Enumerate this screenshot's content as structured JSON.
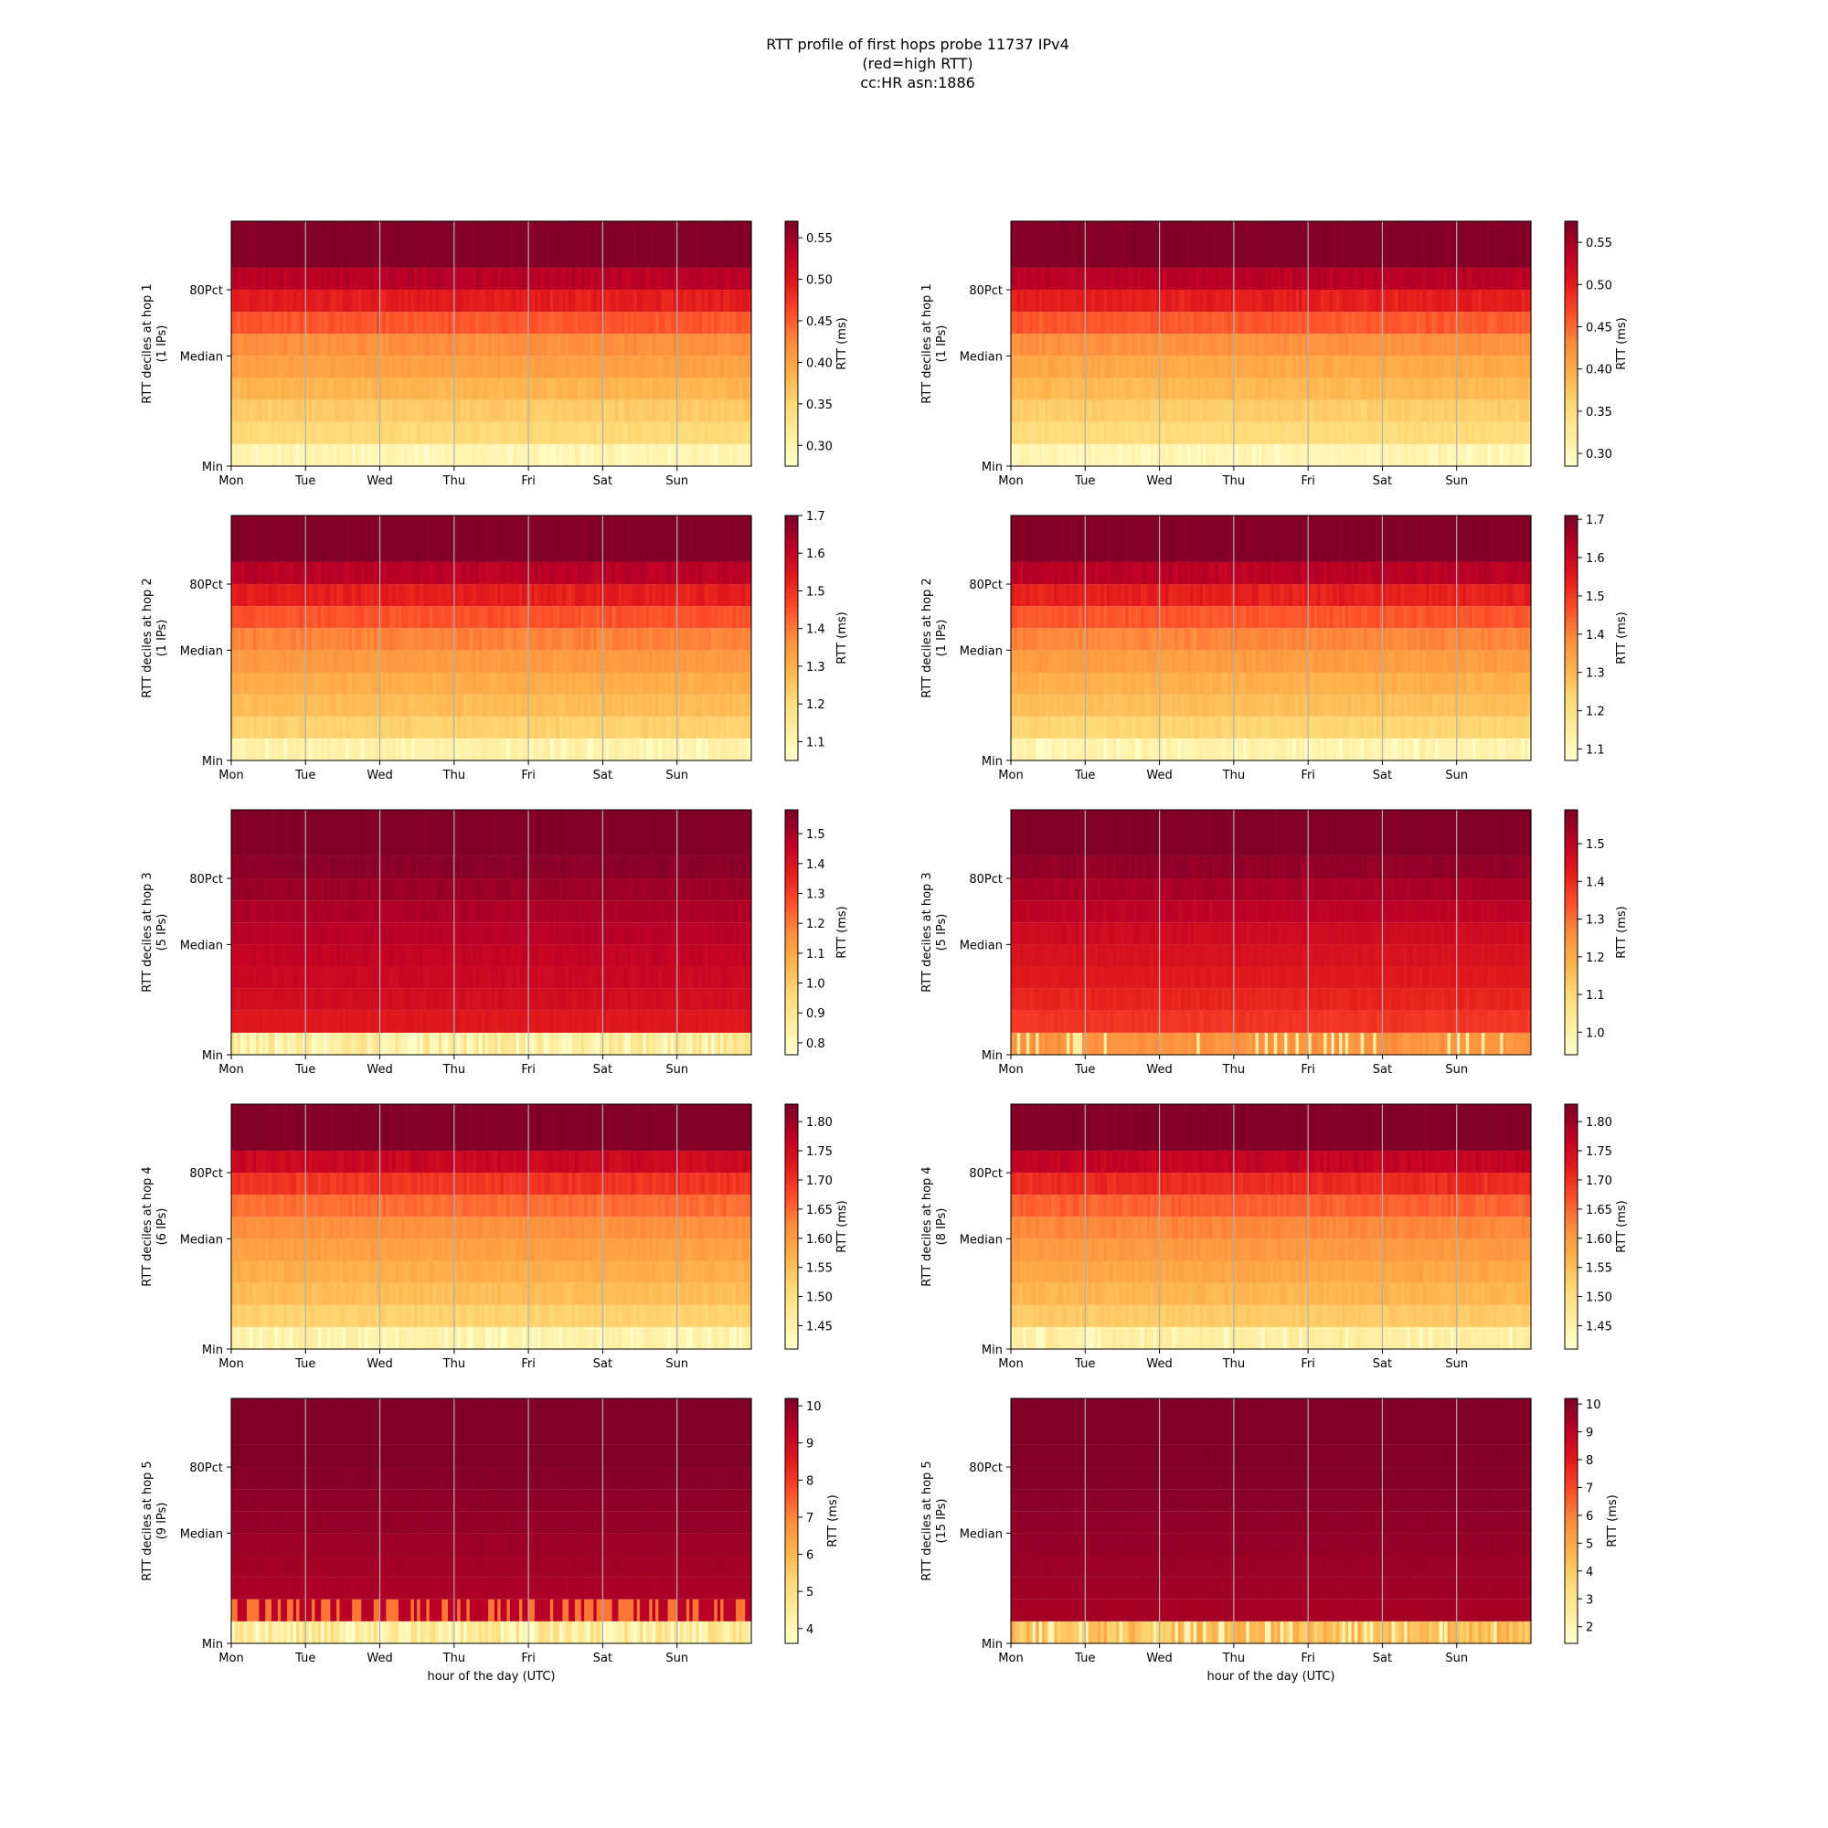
{
  "figure": {
    "title_lines": [
      "RTT profile of first hops probe 11737 IPv4",
      "(red=high RTT)",
      "cc:HR asn:1886"
    ]
  },
  "colors": {
    "colormap": [
      "#ffffcc",
      "#ffeda0",
      "#fed976",
      "#feb24c",
      "#fd8d3c",
      "#fc4e2a",
      "#e31a1c",
      "#bd0026",
      "#800026"
    ],
    "gridline": "#b0b0b0"
  },
  "chart_data": [
    {
      "type": "heatmap",
      "hop": 1,
      "column": "left",
      "ylabel": "RTT deciles at hop 1",
      "ylabel2": "(1 IPs)",
      "xlabel": "",
      "x_ticks": [
        "Mon",
        "Tue",
        "Wed",
        "Thu",
        "Fri",
        "Sat",
        "Sun"
      ],
      "y_ticks": [
        "Min",
        "Median",
        "80Pct"
      ],
      "colorbar": {
        "label": "RTT (ms)",
        "range": [
          0.275,
          0.57
        ],
        "ticks": [
          "0.30",
          "0.35",
          "0.40",
          "0.45",
          "0.50",
          "0.55"
        ]
      },
      "deciles_ms": [
        0.29,
        0.345,
        0.36,
        0.38,
        0.4,
        0.415,
        0.45,
        0.49,
        0.53,
        0.57,
        0.57
      ],
      "noise": 0.04,
      "spikes": []
    },
    {
      "type": "heatmap",
      "hop": 1,
      "column": "right",
      "ylabel": "RTT deciles at hop 1",
      "ylabel2": "(1 IPs)",
      "xlabel": "",
      "x_ticks": [
        "Mon",
        "Tue",
        "Wed",
        "Thu",
        "Fri",
        "Sat",
        "Sun"
      ],
      "y_ticks": [
        "Min",
        "Median",
        "80Pct"
      ],
      "colorbar": {
        "label": "RTT (ms)",
        "range": [
          0.285,
          0.575
        ],
        "ticks": [
          "0.30",
          "0.35",
          "0.40",
          "0.45",
          "0.50",
          "0.55"
        ]
      },
      "deciles_ms": [
        0.3,
        0.35,
        0.365,
        0.385,
        0.4,
        0.42,
        0.455,
        0.495,
        0.535,
        0.575,
        0.575
      ],
      "noise": 0.04,
      "spikes": []
    },
    {
      "type": "heatmap",
      "hop": 2,
      "column": "left",
      "ylabel": "RTT deciles at hop 2",
      "ylabel2": "(1 IPs)",
      "xlabel": "",
      "x_ticks": [
        "Mon",
        "Tue",
        "Wed",
        "Thu",
        "Fri",
        "Sat",
        "Sun"
      ],
      "y_ticks": [
        "Min",
        "Median",
        "80Pct"
      ],
      "colorbar": {
        "label": "RTT (ms)",
        "range": [
          1.05,
          1.7
        ],
        "ticks": [
          "1.1",
          "1.2",
          "1.3",
          "1.4",
          "1.5",
          "1.6",
          "1.7"
        ]
      },
      "deciles_ms": [
        1.1,
        1.22,
        1.27,
        1.3,
        1.34,
        1.38,
        1.44,
        1.52,
        1.61,
        1.7,
        1.7
      ],
      "noise": 0.04,
      "spikes": []
    },
    {
      "type": "heatmap",
      "hop": 2,
      "column": "right",
      "ylabel": "RTT deciles at hop 2",
      "ylabel2": "(1 IPs)",
      "xlabel": "",
      "x_ticks": [
        "Mon",
        "Tue",
        "Wed",
        "Thu",
        "Fri",
        "Sat",
        "Sun"
      ],
      "y_ticks": [
        "Min",
        "Median",
        "80Pct"
      ],
      "colorbar": {
        "label": "RTT (ms)",
        "range": [
          1.07,
          1.71
        ],
        "ticks": [
          "1.1",
          "1.2",
          "1.3",
          "1.4",
          "1.5",
          "1.6",
          "1.7"
        ]
      },
      "deciles_ms": [
        1.11,
        1.23,
        1.28,
        1.31,
        1.35,
        1.39,
        1.45,
        1.53,
        1.62,
        1.71,
        1.71
      ],
      "noise": 0.04,
      "spikes": []
    },
    {
      "type": "heatmap",
      "hop": 3,
      "column": "left",
      "ylabel": "RTT deciles at hop 3",
      "ylabel2": "(5 IPs)",
      "xlabel": "",
      "x_ticks": [
        "Mon",
        "Tue",
        "Wed",
        "Thu",
        "Fri",
        "Sat",
        "Sun"
      ],
      "y_ticks": [
        "Min",
        "Median",
        "80Pct"
      ],
      "colorbar": {
        "label": "RTT (ms)",
        "range": [
          0.76,
          1.58
        ],
        "ticks": [
          "0.8",
          "0.9",
          "1.0",
          "1.1",
          "1.2",
          "1.3",
          "1.4",
          "1.5"
        ]
      },
      "deciles_ms": [
        0.79,
        1.38,
        1.42,
        1.44,
        1.46,
        1.48,
        1.5,
        1.53,
        1.56,
        1.58,
        1.58
      ],
      "noise": 0.03,
      "spikes": []
    },
    {
      "type": "heatmap",
      "hop": 3,
      "column": "right",
      "ylabel": "RTT deciles at hop 3",
      "ylabel2": "(5 IPs)",
      "xlabel": "",
      "x_ticks": [
        "Mon",
        "Tue",
        "Wed",
        "Thu",
        "Fri",
        "Sat",
        "Sun"
      ],
      "y_ticks": [
        "Min",
        "Median",
        "80Pct"
      ],
      "colorbar": {
        "label": "RTT (ms)",
        "range": [
          0.94,
          1.59
        ],
        "ticks": [
          "1.0",
          "1.1",
          "1.2",
          "1.3",
          "1.4",
          "1.5"
        ]
      },
      "deciles_ms": [
        1.23,
        1.38,
        1.41,
        1.43,
        1.45,
        1.47,
        1.5,
        1.53,
        1.56,
        1.59,
        1.59
      ],
      "noise": 0.03,
      "spikes": [
        {
          "decile": 0,
          "x_frac": 0.526,
          "value_ms": 0.96
        },
        {
          "decile": 0,
          "x_frac": 0.616,
          "value_ms": 0.96
        }
      ]
    },
    {
      "type": "heatmap",
      "hop": 4,
      "column": "left",
      "ylabel": "RTT deciles at hop 4",
      "ylabel2": "(6 IPs)",
      "xlabel": "",
      "x_ticks": [
        "Mon",
        "Tue",
        "Wed",
        "Thu",
        "Fri",
        "Sat",
        "Sun"
      ],
      "y_ticks": [
        "Min",
        "Median",
        "80Pct"
      ],
      "colorbar": {
        "label": "RTT (ms)",
        "range": [
          1.41,
          1.83
        ],
        "ticks": [
          "1.45",
          "1.50",
          "1.55",
          "1.60",
          "1.65",
          "1.70",
          "1.75",
          "1.80"
        ]
      },
      "deciles_ms": [
        1.44,
        1.52,
        1.55,
        1.57,
        1.59,
        1.61,
        1.64,
        1.69,
        1.75,
        1.83,
        1.83
      ],
      "noise": 0.04,
      "spikes": []
    },
    {
      "type": "heatmap",
      "hop": 4,
      "column": "right",
      "ylabel": "RTT deciles at hop 4",
      "ylabel2": "(8 IPs)",
      "xlabel": "",
      "x_ticks": [
        "Mon",
        "Tue",
        "Wed",
        "Thu",
        "Fri",
        "Sat",
        "Sun"
      ],
      "y_ticks": [
        "Min",
        "Median",
        "80Pct"
      ],
      "colorbar": {
        "label": "RTT (ms)",
        "range": [
          1.41,
          1.83
        ],
        "ticks": [
          "1.45",
          "1.50",
          "1.55",
          "1.60",
          "1.65",
          "1.70",
          "1.75",
          "1.80"
        ]
      },
      "deciles_ms": [
        1.45,
        1.53,
        1.56,
        1.58,
        1.6,
        1.62,
        1.65,
        1.7,
        1.76,
        1.83,
        1.83
      ],
      "noise": 0.04,
      "spikes": []
    },
    {
      "type": "heatmap",
      "hop": 5,
      "column": "left",
      "ylabel": "RTT deciles at hop 5",
      "ylabel2": "(9 IPs)",
      "xlabel": "hour of the day (UTC)",
      "x_ticks": [
        "Mon",
        "Tue",
        "Wed",
        "Thu",
        "Fri",
        "Sat",
        "Sun"
      ],
      "y_ticks": [
        "Min",
        "Median",
        "80Pct"
      ],
      "colorbar": {
        "label": "RTT (ms)",
        "range": [
          3.6,
          10.2
        ],
        "ticks": [
          "4",
          "5",
          "6",
          "7",
          "8",
          "9",
          "10"
        ]
      },
      "deciles_ms": [
        3.8,
        9.4,
        9.6,
        9.7,
        9.8,
        9.9,
        10.0,
        10.1,
        10.2,
        10.2,
        10.2
      ],
      "noise": 0.01,
      "spikes": [],
      "flicker": {
        "decile": 1,
        "value_ms": 7.2,
        "prob": 0.4
      }
    },
    {
      "type": "heatmap",
      "hop": 5,
      "column": "right",
      "ylabel": "RTT deciles at hop 5",
      "ylabel2": "(15 IPs)",
      "xlabel": "hour of the day (UTC)",
      "x_ticks": [
        "Mon",
        "Tue",
        "Wed",
        "Thu",
        "Fri",
        "Sat",
        "Sun"
      ],
      "y_ticks": [
        "Min",
        "Median",
        "80Pct"
      ],
      "colorbar": {
        "label": "RTT (ms)",
        "range": [
          1.4,
          10.2
        ],
        "ticks": [
          "2",
          "3",
          "4",
          "5",
          "6",
          "7",
          "8",
          "9",
          "10"
        ]
      },
      "deciles_ms": [
        3.6,
        9.5,
        9.6,
        9.7,
        9.8,
        9.9,
        10.0,
        10.1,
        10.15,
        10.2,
        10.2
      ],
      "noise": 0.01,
      "spikes": [
        {
          "decile": 0,
          "x_frac": 0.825,
          "value_ms": 1.5
        }
      ]
    }
  ]
}
